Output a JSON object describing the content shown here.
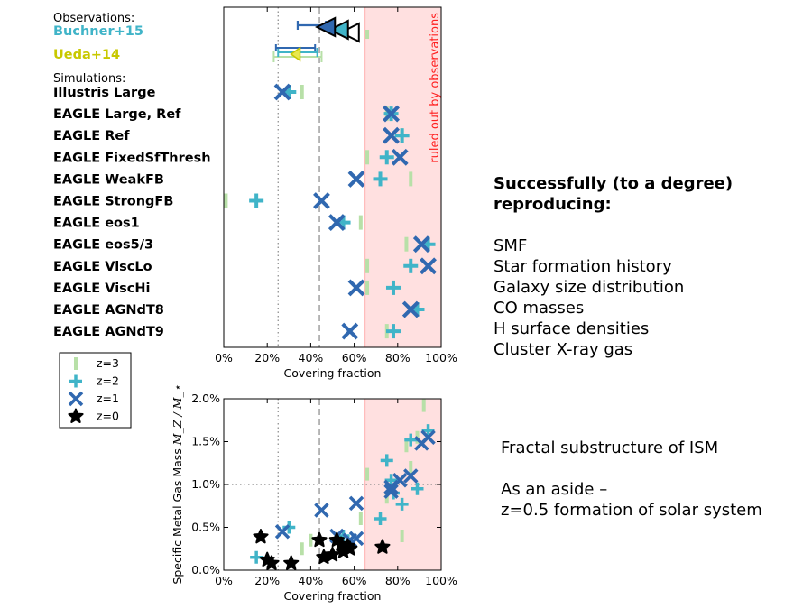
{
  "colors": {
    "buchner": "#40b4c8",
    "ueda": "#c8c800",
    "z3": "#b8e0a8",
    "z2": "#40b4c8",
    "z1": "#3068b0",
    "z0": "#000000",
    "excluded_region": "#ffe0e0",
    "excluded_text": "#ff2020",
    "reference_line": "#888888"
  },
  "chart_data": [
    {
      "type": "scatter",
      "orientation": "horizontal-rows",
      "title": "",
      "xlabel": "Covering fraction",
      "ylabel": "",
      "xlim": [
        0,
        100
      ],
      "x_ticks": [
        "0%",
        "20%",
        "40%",
        "60%",
        "80%",
        "100%"
      ],
      "x_tick_values": [
        0,
        20,
        40,
        60,
        80,
        100
      ],
      "ref_lines": {
        "dotted": 25,
        "dashed": 44
      },
      "excluded_region": {
        "from": 65,
        "to": 100,
        "label": "ruled out by observations"
      },
      "group_labels": {
        "observations": "Observations:",
        "simulations": "Simulations:"
      },
      "observations": [
        {
          "name": "Buchner+15",
          "color_key": "buchner",
          "points": [
            {
              "x": 47,
              "z": "z3",
              "err": [
                34,
                47
              ]
            },
            {
              "x": 53,
              "z": "z2"
            },
            {
              "x": 58,
              "z": "z1"
            }
          ]
        },
        {
          "name": "Ueda+14",
          "color_key": "ueda",
          "points": [
            {
              "x": 33,
              "z": "z3",
              "err": [
                23,
                45
              ]
            },
            {
              "x": 33,
              "z": "z2",
              "err": [
                25,
                43
              ]
            }
          ]
        }
      ],
      "rows": [
        {
          "name": "Illustris Large",
          "z3": 36,
          "z2": 30,
          "z1": 27
        },
        {
          "name": "EAGLE Large, Ref",
          "z3": 75,
          "z2": 77,
          "z1": 77
        },
        {
          "name": "EAGLE Ref",
          "z3": 82,
          "z2": 82,
          "z1": 77
        },
        {
          "name": "EAGLE FixedSfThresh",
          "z3": 66,
          "z2": 75,
          "z1": 81
        },
        {
          "name": "EAGLE WeakFB",
          "z3": 86,
          "z2": 72,
          "z1": 61
        },
        {
          "name": "EAGLE StrongFB",
          "z3": 1,
          "z2": 15,
          "z1": 45
        },
        {
          "name": "EAGLE eos1",
          "z3": 63,
          "z2": 55,
          "z1": 52
        },
        {
          "name": "EAGLE eos5/3",
          "z3": 84,
          "z2": 94,
          "z1": 91
        },
        {
          "name": "EAGLE ViscLo",
          "z3": 66,
          "z2": 86,
          "z1": 94
        },
        {
          "name": "EAGLE ViscHi",
          "z3": 66,
          "z2": 78,
          "z1": 61
        },
        {
          "name": "EAGLE AGNdT8",
          "z3": 89,
          "z2": 89,
          "z1": 86
        },
        {
          "name": "EAGLE AGNdT9",
          "z3": 75,
          "z2": 78,
          "z1": 58
        }
      ],
      "legend": {
        "position": "below-left",
        "entries": [
          {
            "key": "z3",
            "label": "z=3"
          },
          {
            "key": "z2",
            "label": "z=2"
          },
          {
            "key": "z1",
            "label": "z=1"
          },
          {
            "key": "z0",
            "label": "z=0"
          }
        ]
      }
    },
    {
      "type": "scatter",
      "title": "",
      "xlabel": "Covering fraction",
      "ylabel": "Specific Metal Gas Mass",
      "ylabel_math": "M_Z / M_⋆",
      "xlim": [
        0,
        100
      ],
      "ylim": [
        0,
        2.0
      ],
      "x_ticks": [
        "0%",
        "20%",
        "40%",
        "60%",
        "80%",
        "100%"
      ],
      "x_tick_values": [
        0,
        20,
        40,
        60,
        80,
        100
      ],
      "y_ticks": [
        "0.0%",
        "0.5%",
        "1.0%",
        "1.5%",
        "2.0%"
      ],
      "y_tick_values": [
        0,
        0.5,
        1.0,
        1.5,
        2.0
      ],
      "ref_lines": {
        "dotted_x": 25,
        "dashed_x": 44,
        "dotted_y": 1.0
      },
      "excluded_region": {
        "from": 65,
        "to": 100
      },
      "series": [
        {
          "key": "z3",
          "points": [
            [
              36,
              0.25
            ],
            [
              40,
              0.35
            ],
            [
              66,
              1.12
            ],
            [
              75,
              0.85
            ],
            [
              82,
              0.4
            ],
            [
              84,
              1.45
            ],
            [
              89,
              1.55
            ],
            [
              92,
              1.92
            ],
            [
              63,
              0.6
            ],
            [
              86,
              1.2
            ]
          ]
        },
        {
          "key": "z2",
          "points": [
            [
              15,
              0.15
            ],
            [
              30,
              0.5
            ],
            [
              55,
              0.4
            ],
            [
              75,
              1.28
            ],
            [
              77,
              1.05
            ],
            [
              82,
              0.77
            ],
            [
              86,
              1.52
            ],
            [
              89,
              0.95
            ],
            [
              94,
              1.63
            ],
            [
              72,
              0.6
            ],
            [
              78,
              0.9
            ]
          ]
        },
        {
          "key": "z1",
          "points": [
            [
              27,
              0.45
            ],
            [
              45,
              0.7
            ],
            [
              52,
              0.4
            ],
            [
              58,
              0.35
            ],
            [
              61,
              0.37
            ],
            [
              61,
              0.78
            ],
            [
              77,
              0.92
            ],
            [
              77,
              0.97
            ],
            [
              81,
              1.05
            ],
            [
              86,
              1.1
            ],
            [
              91,
              1.48
            ],
            [
              94,
              1.55
            ]
          ]
        },
        {
          "key": "z0",
          "points": [
            [
              17,
              0.39
            ],
            [
              20,
              0.12
            ],
            [
              22,
              0.08
            ],
            [
              31,
              0.08
            ],
            [
              44,
              0.35
            ],
            [
              46,
              0.15
            ],
            [
              50,
              0.18
            ],
            [
              52,
              0.35
            ],
            [
              54,
              0.3
            ],
            [
              55,
              0.22
            ],
            [
              57,
              0.28
            ],
            [
              58,
              0.25
            ],
            [
              73,
              0.27
            ]
          ]
        }
      ]
    }
  ],
  "notes": {
    "heading_line1": "Successfully (to a degree)",
    "heading_line2": "reproducing:",
    "items": [
      "SMF",
      "Star formation history",
      "Galaxy size distribution",
      "CO masses",
      "H surface densities",
      "Cluster X-ray gas"
    ],
    "lower_item": "Fractal substructure of ISM",
    "aside_line1": "As an aside –",
    "aside_line2": "z=0.5 formation of solar system"
  }
}
